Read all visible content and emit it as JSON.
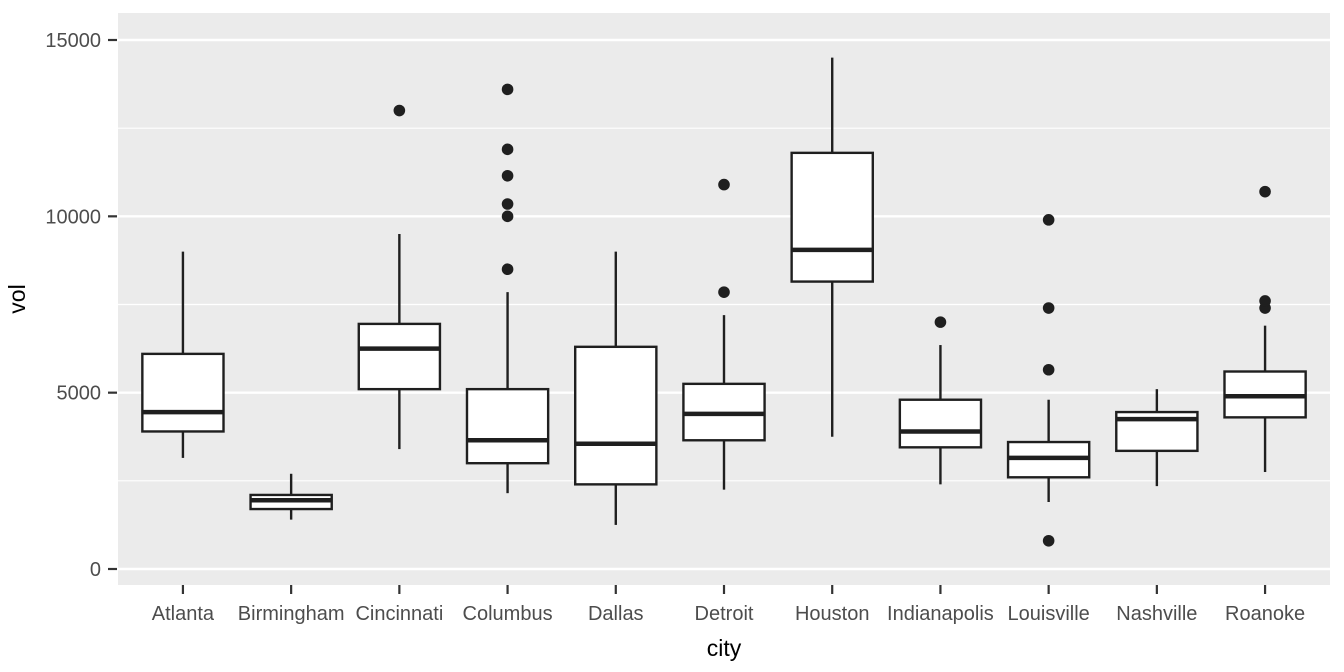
{
  "figure": {
    "background": "#FFFFFF"
  },
  "chart_data": {
    "type": "boxplot",
    "title": "",
    "xlabel": "city",
    "ylabel": "vol",
    "categories": [
      "Atlanta",
      "Birmingham",
      "Cincinnati",
      "Columbus",
      "Dallas",
      "Detroit",
      "Houston",
      "Indianapolis",
      "Louisville",
      "Nashville",
      "Roanoke"
    ],
    "yticks": [
      0,
      5000,
      10000,
      15000
    ],
    "ytick_labels": [
      "0",
      "5000",
      "10000",
      "15000"
    ],
    "minor_gridlines": [
      2500,
      7500,
      12500
    ],
    "ylim": [
      -450,
      15750
    ],
    "grid": "on",
    "legend": "none",
    "panel_bg": "#EBEBEB",
    "grid_color": "#FFFFFF",
    "box_fill": "#FFFFFF",
    "line_color": "#1F1F1F",
    "tick_color": "#333333",
    "tick_text_color": "#4D4D4D",
    "title_text_color": "#000000",
    "series": [
      {
        "name": "Atlanta",
        "min": 3150,
        "q1": 3900,
        "median": 4450,
        "q3": 6100,
        "max": 9000,
        "outliers": []
      },
      {
        "name": "Birmingham",
        "min": 1400,
        "q1": 1700,
        "median": 1950,
        "q3": 2100,
        "max": 2700,
        "outliers": []
      },
      {
        "name": "Cincinnati",
        "min": 3400,
        "q1": 5100,
        "median": 6250,
        "q3": 6950,
        "max": 9500,
        "outliers": [
          13000
        ]
      },
      {
        "name": "Columbus",
        "min": 2150,
        "q1": 3000,
        "median": 3650,
        "q3": 5100,
        "max": 7850,
        "outliers": [
          8500,
          10000,
          10350,
          11150,
          11900,
          13600
        ]
      },
      {
        "name": "Dallas",
        "min": 1250,
        "q1": 2400,
        "median": 3550,
        "q3": 6300,
        "max": 9000,
        "outliers": []
      },
      {
        "name": "Detroit",
        "min": 2250,
        "q1": 3650,
        "median": 4400,
        "q3": 5250,
        "max": 7200,
        "outliers": [
          7850,
          10900
        ]
      },
      {
        "name": "Houston",
        "min": 3750,
        "q1": 8150,
        "median": 9050,
        "q3": 11800,
        "max": 14500,
        "outliers": []
      },
      {
        "name": "Indianapolis",
        "min": 2400,
        "q1": 3450,
        "median": 3900,
        "q3": 4800,
        "max": 6350,
        "outliers": [
          7000
        ]
      },
      {
        "name": "Louisville",
        "min": 1900,
        "q1": 2600,
        "median": 3150,
        "q3": 3600,
        "max": 4800,
        "outliers": [
          800,
          5650,
          7400,
          9900
        ]
      },
      {
        "name": "Nashville",
        "min": 2350,
        "q1": 3350,
        "median": 4250,
        "q3": 4450,
        "max": 5100,
        "outliers": []
      },
      {
        "name": "Roanoke",
        "min": 2750,
        "q1": 4300,
        "median": 4900,
        "q3": 5600,
        "max": 6900,
        "outliers": [
          7400,
          7600,
          10700
        ]
      }
    ]
  }
}
